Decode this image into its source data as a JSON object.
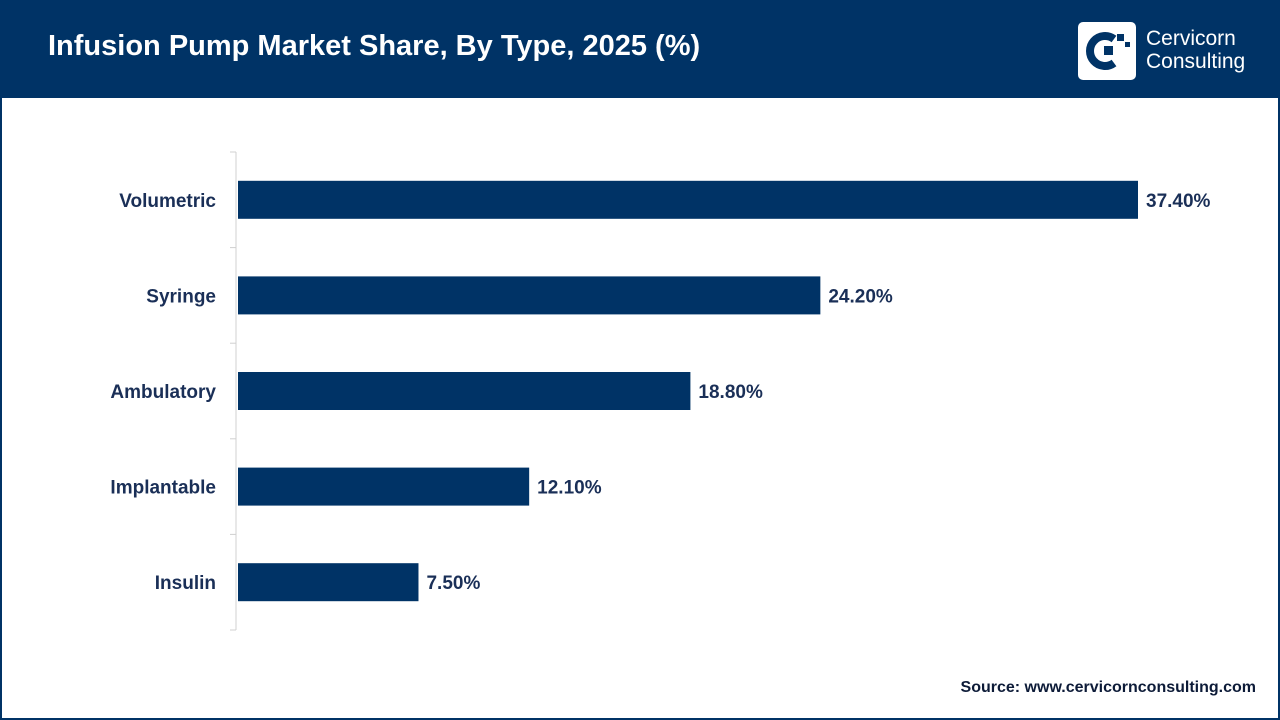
{
  "header": {
    "title": "Infusion Pump Market Share, By Type, 2025 (%)"
  },
  "logo": {
    "line1": "Cervicorn",
    "line2": "Consulting",
    "icon": "cervicorn-logo-icon"
  },
  "colors": {
    "header_bg": "#003366",
    "bar": "#003366",
    "text": "#1a2f57"
  },
  "chart_data": {
    "type": "bar",
    "orientation": "horizontal",
    "title": "Infusion Pump Market Share, By Type, 2025 (%)",
    "xlabel": "",
    "ylabel": "",
    "categories": [
      "Volumetric",
      "Syringe",
      "Ambulatory",
      "Implantable",
      "Insulin"
    ],
    "values": [
      37.4,
      24.2,
      18.8,
      12.1,
      7.5
    ],
    "value_labels": [
      "37.40%",
      "24.20%",
      "18.80%",
      "12.10%",
      "7.50%"
    ],
    "xlim": [
      0,
      37.4
    ],
    "grid": false,
    "legend": "none"
  },
  "footer": {
    "source": "Source: www.cervicornconsulting.com"
  }
}
